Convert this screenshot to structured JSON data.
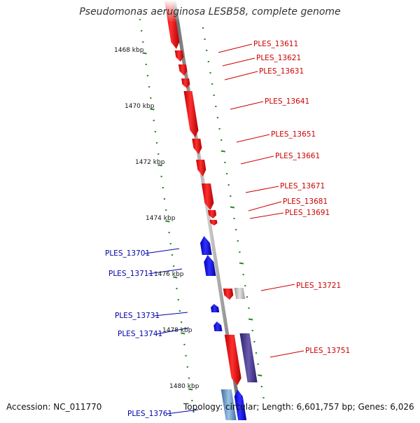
{
  "title": "Pseudomonas aeruginosa LESB58, complete genome",
  "footer": {
    "accession": "Accession: NC_011770",
    "summary": "Topology: circular; Length: 6,601,757 bp; Genes: 6,026"
  },
  "colors": {
    "forward_gene": "#ff0000",
    "reverse_gene": "#0000ff",
    "pseudo_gene": "#aaaaaa",
    "rna_gene": "#4b3b8c",
    "tick": "#2a8a2a",
    "backbone": "#888888"
  },
  "scale_labels": [
    "1468 kbp",
    "1470 kbp",
    "1472 kbp",
    "1474 kbp",
    "1476 kbp",
    "1478 kbp",
    "1480 kbp"
  ],
  "genes": [
    {
      "label": "PLES_13611",
      "strand": "forward"
    },
    {
      "label": "PLES_13621",
      "strand": "forward"
    },
    {
      "label": "PLES_13631",
      "strand": "forward"
    },
    {
      "label": "PLES_13641",
      "strand": "forward"
    },
    {
      "label": "PLES_13651",
      "strand": "forward"
    },
    {
      "label": "PLES_13661",
      "strand": "forward"
    },
    {
      "label": "PLES_13671",
      "strand": "forward"
    },
    {
      "label": "PLES_13681",
      "strand": "forward"
    },
    {
      "label": "PLES_13691",
      "strand": "forward"
    },
    {
      "label": "PLES_13701",
      "strand": "reverse"
    },
    {
      "label": "PLES_13711",
      "strand": "reverse"
    },
    {
      "label": "PLES_13721",
      "strand": "forward"
    },
    {
      "label": "PLES_13731",
      "strand": "reverse"
    },
    {
      "label": "PLES_13741",
      "strand": "reverse"
    },
    {
      "label": "PLES_13751",
      "strand": "forward"
    },
    {
      "label": "PLES_13761",
      "strand": "reverse"
    }
  ]
}
